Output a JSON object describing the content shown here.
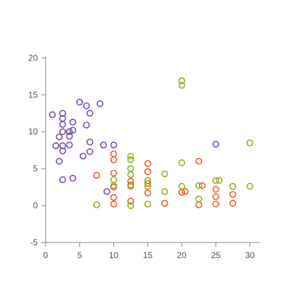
{
  "chart_data": {
    "type": "scatter",
    "title": "",
    "xlabel": "",
    "ylabel": "",
    "xlim": [
      0,
      31.5
    ],
    "ylim": [
      -5,
      21
    ],
    "x_ticks": [
      0,
      5,
      10,
      15,
      20,
      25,
      30
    ],
    "y_ticks": [
      -5,
      0,
      5,
      10,
      15,
      20
    ],
    "grid": false,
    "legend": "none",
    "series": [
      {
        "color": "#7a4fb0",
        "points": [
          [
            1,
            12.3
          ],
          [
            1.5,
            8.1
          ],
          [
            2,
            9.3
          ],
          [
            2,
            6
          ],
          [
            2.5,
            12.5
          ],
          [
            2.5,
            11.8
          ],
          [
            2.5,
            11
          ],
          [
            2.5,
            10
          ],
          [
            2.5,
            8.1
          ],
          [
            2.5,
            7.4
          ],
          [
            2.5,
            3.5
          ],
          [
            3.5,
            10
          ],
          [
            3.5,
            9.4
          ],
          [
            3.5,
            8.2
          ],
          [
            4,
            11.3
          ],
          [
            4,
            10.2
          ],
          [
            4,
            3.7
          ],
          [
            5,
            14
          ],
          [
            5.5,
            6.7
          ],
          [
            6,
            13.5
          ],
          [
            6,
            10.9
          ],
          [
            6.5,
            12.5
          ],
          [
            6.5,
            8.6
          ],
          [
            6.5,
            7.3
          ],
          [
            8,
            13.8
          ],
          [
            8.5,
            8.2
          ],
          [
            9,
            1.9
          ],
          [
            10,
            8.2
          ],
          [
            25,
            8.3
          ]
        ]
      },
      {
        "color": "#f05a28",
        "points": [
          [
            7.5,
            4.1
          ],
          [
            10,
            7
          ],
          [
            10,
            6.2
          ],
          [
            10,
            4.4
          ],
          [
            10,
            2.5
          ],
          [
            10,
            1.1
          ],
          [
            10,
            0.2
          ],
          [
            12.5,
            3.3
          ],
          [
            12.5,
            2.8
          ],
          [
            12.5,
            0.6
          ],
          [
            15,
            5.7
          ],
          [
            15,
            4.6
          ],
          [
            15,
            3
          ],
          [
            15,
            1.7
          ],
          [
            17.5,
            0.3
          ],
          [
            20,
            1.8
          ],
          [
            20.5,
            1.9
          ],
          [
            22.5,
            6
          ],
          [
            22.5,
            0.1
          ],
          [
            23,
            2.7
          ],
          [
            25,
            2.2
          ],
          [
            25,
            1.2
          ],
          [
            25,
            0.2
          ],
          [
            27.5,
            1.5
          ],
          [
            27.5,
            0.3
          ]
        ]
      },
      {
        "color": "#8cb61e",
        "points": [
          [
            7.5,
            0.1
          ],
          [
            10,
            3.5
          ],
          [
            10,
            2.7
          ],
          [
            12.5,
            6.7
          ],
          [
            12.5,
            6.2
          ],
          [
            12.5,
            5
          ],
          [
            12.5,
            4.2
          ],
          [
            12.5,
            2.6
          ],
          [
            12.5,
            0
          ],
          [
            15,
            3.4
          ],
          [
            15,
            2.6
          ],
          [
            15,
            0.2
          ],
          [
            17.5,
            4.3
          ],
          [
            17.5,
            1.9
          ],
          [
            20,
            16.9
          ],
          [
            20,
            16.3
          ],
          [
            20,
            5.8
          ],
          [
            20,
            2.6
          ],
          [
            22.5,
            2.7
          ],
          [
            22.5,
            0.9
          ],
          [
            25,
            3.4
          ],
          [
            25.5,
            3.4
          ],
          [
            27.5,
            2.6
          ],
          [
            30,
            8.5
          ],
          [
            30,
            2.6
          ]
        ]
      }
    ]
  }
}
